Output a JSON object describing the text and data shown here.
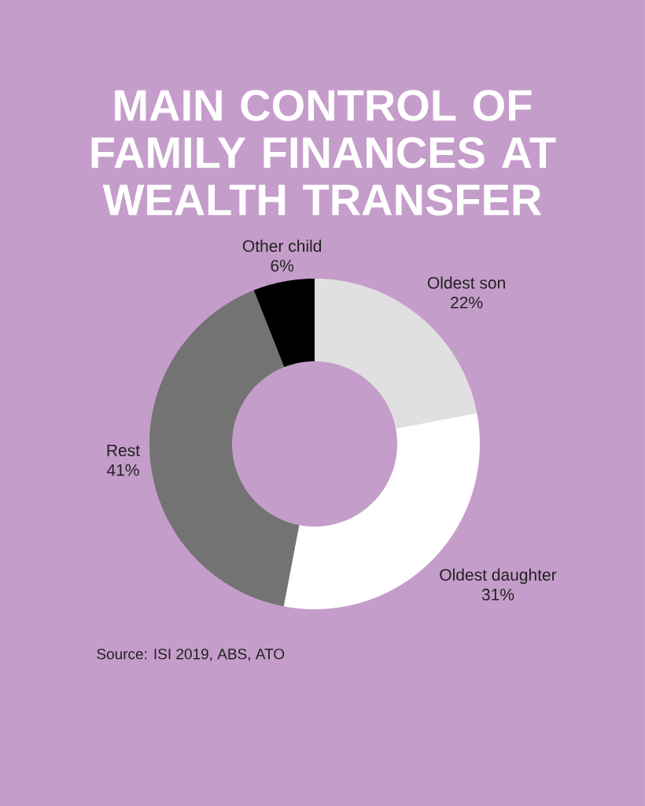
{
  "chart_data": {
    "type": "donut",
    "title": "MAIN CONTROL OF FAMILY FINANCES AT WEALTH TRANSFER",
    "categories": [
      "Oldest son",
      "Oldest daughter",
      "Rest",
      "Other child"
    ],
    "values": [
      22,
      31,
      41,
      6
    ],
    "value_labels": [
      "22%",
      "31%",
      "41%",
      "6%"
    ],
    "colors": [
      "#e0e0e0",
      "#ffffff",
      "#737373",
      "#000000"
    ],
    "annotations": [
      "Source: ISI 2019, ABS, ATO"
    ]
  }
}
